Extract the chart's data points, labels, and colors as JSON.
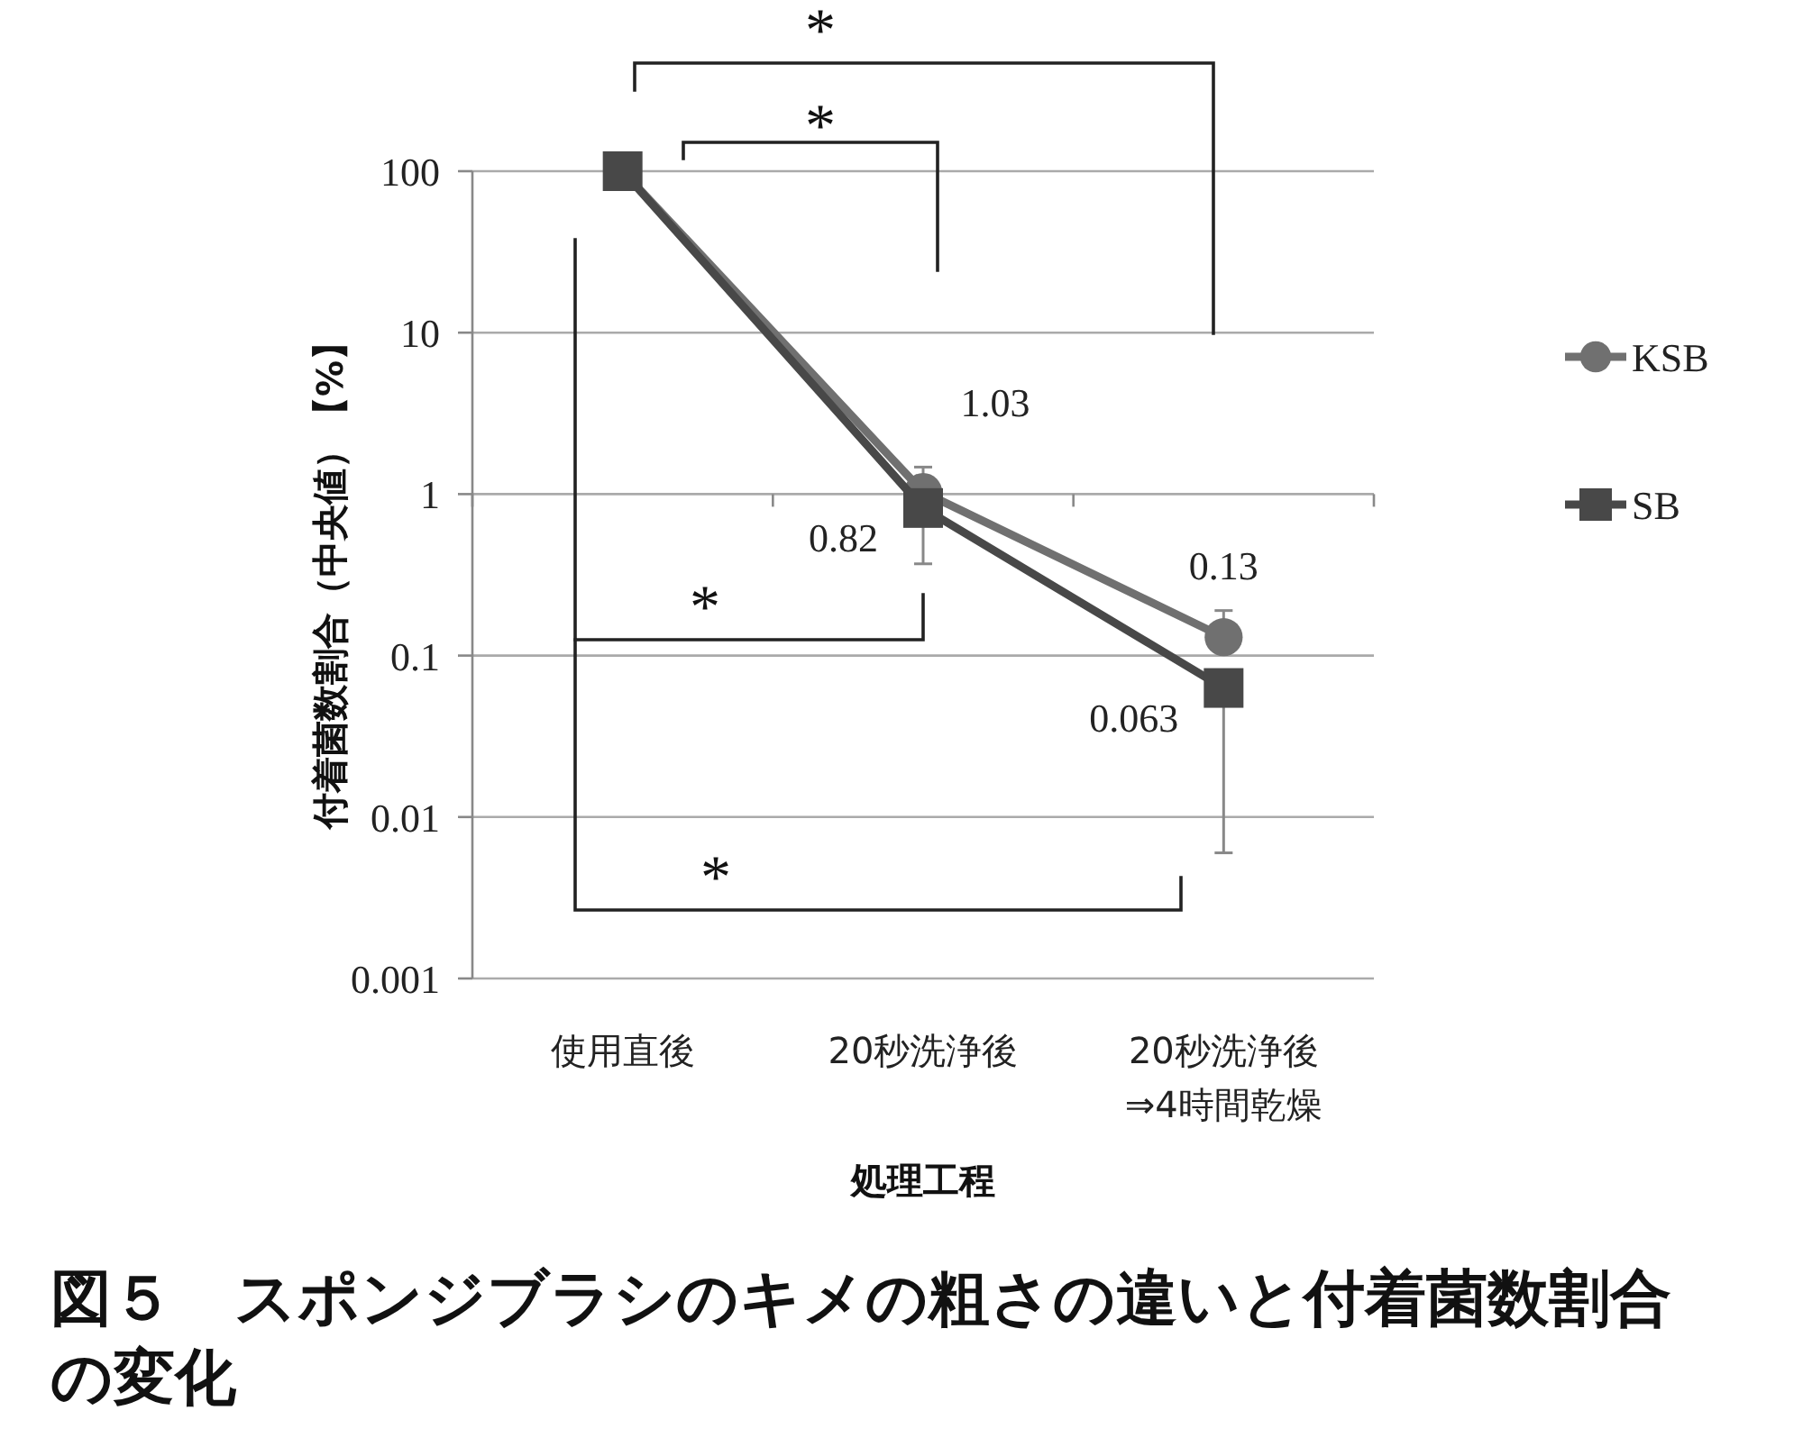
{
  "chart_data": {
    "type": "line",
    "title": "図５　スポンジブラシのキメの粗さの違いと付着菌数割合の変化",
    "xlabel": "処理工程",
    "ylabel": "付着菌数割合（中央値）【%】",
    "categories": [
      "使用直後",
      "20秒洗浄後",
      "20秒洗浄後\n⇒4時間乾燥"
    ],
    "series": [
      {
        "name": "KSB",
        "color": "#707070",
        "marker": "circle",
        "values": [
          100,
          1.03,
          0.13
        ],
        "value_labels": [
          null,
          "1.03",
          "0.13"
        ],
        "errors": [
          null,
          [
            1.03,
            1.47
          ],
          [
            0.13,
            0.19
          ]
        ]
      },
      {
        "name": "SB",
        "color": "#484848",
        "marker": "square",
        "values": [
          100,
          0.82,
          0.063
        ],
        "value_labels": [
          null,
          "0.82",
          "0.063"
        ],
        "errors": [
          null,
          [
            0.37,
            0.82
          ],
          [
            0.006,
            0.063
          ]
        ]
      }
    ],
    "log": true,
    "ylim": [
      0.001,
      100
    ],
    "yticks": [
      0.001,
      0.01,
      0.1,
      1,
      10,
      100
    ],
    "grid": "y",
    "legend": "right",
    "annotations": [
      "*",
      "*",
      "*",
      "*"
    ]
  }
}
